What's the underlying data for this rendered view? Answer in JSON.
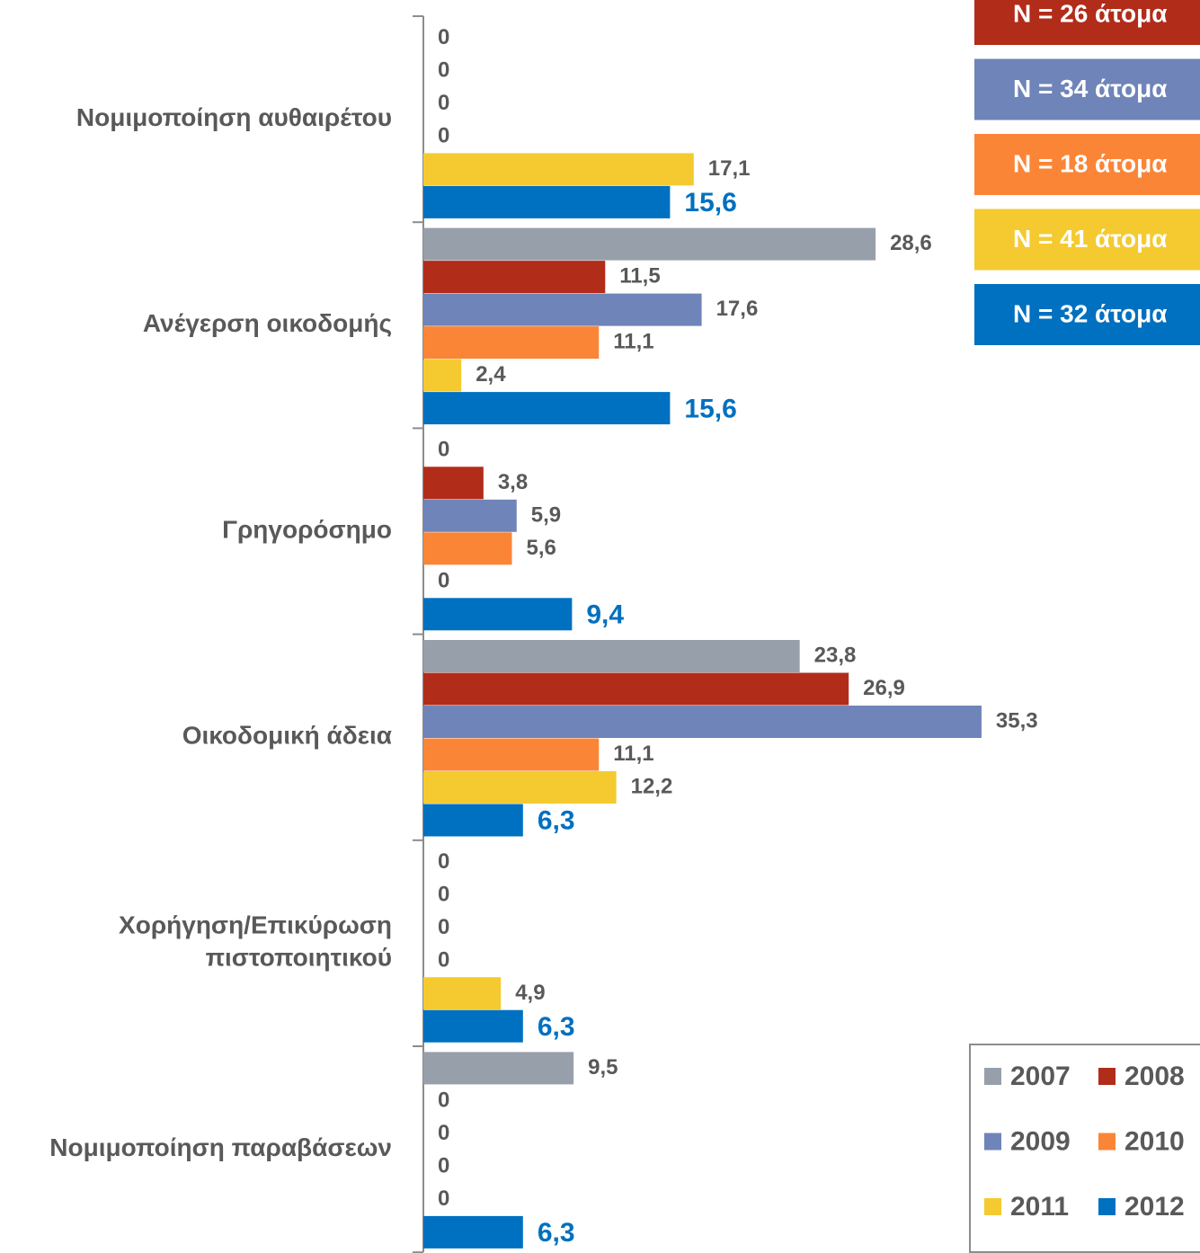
{
  "chart_data": {
    "type": "hbar",
    "categories": [
      "Νομιμοποίηση αυθαιρέτου",
      "Ανέγερση οικοδομής",
      "Γρηγορόσημο",
      "Οικοδομική άδεια",
      "Χορήγηση/Επικύρωση πιστοποιητικού",
      "Νομιμοποίηση παραβάσεων"
    ],
    "series": [
      {
        "name": "2007",
        "color": "#979fab",
        "values": [
          0,
          28.6,
          0,
          23.8,
          0,
          9.5
        ],
        "value_labels": [
          "0",
          "28,6",
          "0",
          "23,8",
          "0",
          "9,5"
        ]
      },
      {
        "name": "2008",
        "color": "#b22c1a",
        "values": [
          0,
          11.5,
          3.8,
          26.9,
          0,
          0
        ],
        "value_labels": [
          "0",
          "11,5",
          "3,8",
          "26,9",
          "0",
          "0"
        ]
      },
      {
        "name": "2009",
        "color": "#6f84b8",
        "values": [
          0,
          17.6,
          5.9,
          35.3,
          0,
          0
        ],
        "value_labels": [
          "0",
          "17,6",
          "5,9",
          "35,3",
          "0",
          "0"
        ]
      },
      {
        "name": "2010",
        "color": "#fb8536",
        "values": [
          0,
          11.1,
          5.6,
          11.1,
          0,
          0
        ],
        "value_labels": [
          "0",
          "11,1",
          "5,6",
          "11,1",
          "0",
          "0"
        ]
      },
      {
        "name": "2011",
        "color": "#f4ca30",
        "values": [
          17.1,
          2.4,
          0,
          12.2,
          4.9,
          0
        ],
        "value_labels": [
          "17,1",
          "2,4",
          "0",
          "12,2",
          "4,9",
          "0"
        ]
      },
      {
        "name": "2012",
        "color": "#0070c0",
        "values": [
          15.6,
          15.6,
          9.4,
          6.3,
          6.3,
          6.3
        ],
        "value_labels": [
          "15,6",
          "15,6",
          "9,4",
          "6,3",
          "6,3",
          "6,3"
        ]
      }
    ],
    "annotations": [
      {
        "text": "N = 26 άτομα",
        "color": "#b22c1a"
      },
      {
        "text": "N = 34 άτομα",
        "color": "#6f84b8"
      },
      {
        "text": "N = 18 άτομα",
        "color": "#fb8536"
      },
      {
        "text": "N = 41 άτομα",
        "color": "#f4ca30"
      },
      {
        "text": "N = 32 άτομα",
        "color": "#0070c0"
      }
    ],
    "legend": "bottom-right"
  }
}
